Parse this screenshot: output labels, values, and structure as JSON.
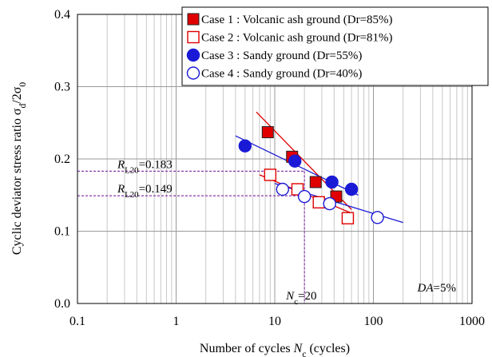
{
  "chart_data": {
    "type": "scatter",
    "x_scale": "log",
    "xlim": [
      0.1,
      1000
    ],
    "ylim": [
      0.0,
      0.4
    ],
    "x_ticks": [
      0.1,
      1,
      10,
      100,
      1000
    ],
    "x_tick_labels": [
      "0.1",
      "1",
      "10",
      "100",
      "1000"
    ],
    "y_ticks": [
      0.0,
      0.1,
      0.2,
      0.3,
      0.4
    ],
    "y_tick_labels": [
      "0.0",
      "0.1",
      "0.2",
      "0.3",
      "0.4"
    ],
    "grid": "on (log minor gridlines on x, major on y)",
    "legend_position": "top-right",
    "xlabel": {
      "main": "Number of cycles ",
      "var": "N",
      "sub": "c",
      "tail": " (cycles)"
    },
    "ylabel": {
      "main": "Cyclic deviator stress ratio ",
      "s1": "σ",
      "sub1": "d",
      "mid": "/2",
      "s2": "σ",
      "sub2": "0"
    },
    "series": [
      {
        "name": "Case 1 : Volcanic ash ground (Dr=85%)",
        "marker": "square-filled",
        "color": "#e00000",
        "points": [
          [
            8.5,
            0.237
          ],
          [
            15,
            0.203
          ],
          [
            26,
            0.168
          ],
          [
            42,
            0.148
          ]
        ],
        "fit": [
          [
            6.5,
            0.265
          ],
          [
            60,
            0.13
          ]
        ]
      },
      {
        "name": "Case 2 : Volcanic ash ground (Dr=81%)",
        "marker": "square-open",
        "color": "#e00000",
        "points": [
          [
            9,
            0.178
          ],
          [
            17,
            0.158
          ],
          [
            28,
            0.14
          ],
          [
            55,
            0.118
          ]
        ],
        "fit": [
          [
            7,
            0.178
          ],
          [
            60,
            0.125
          ]
        ]
      },
      {
        "name": "Case 3 : Sandy ground (Dr=55%)",
        "marker": "circle-filled",
        "color": "#1a1ad6",
        "points": [
          [
            5,
            0.218
          ],
          [
            16,
            0.197
          ],
          [
            38,
            0.168
          ],
          [
            60,
            0.158
          ]
        ],
        "fit": [
          [
            4,
            0.232
          ],
          [
            70,
            0.15
          ]
        ]
      },
      {
        "name": "Case 4 : Sandy ground (Dr=40%)",
        "marker": "circle-open",
        "color": "#1a1ad6",
        "points": [
          [
            12,
            0.158
          ],
          [
            20,
            0.148
          ],
          [
            36,
            0.138
          ],
          [
            110,
            0.119
          ]
        ],
        "fit": [
          [
            10,
            0.166
          ],
          [
            200,
            0.112
          ]
        ]
      }
    ],
    "annotations": [
      {
        "id": "rl20-a",
        "prefix": "R",
        "sub": "L20",
        "suffix": "=0.183",
        "value": 0.183
      },
      {
        "id": "rl20-b",
        "prefix": "R",
        "sub": "L20",
        "suffix": "=0.149",
        "value": 0.149
      },
      {
        "id": "nc",
        "prefix": "N",
        "sub": "c",
        "suffix": "=20",
        "value": 20
      },
      {
        "id": "da",
        "prefix": "DA",
        "sub": "",
        "suffix": "=5%"
      }
    ]
  }
}
